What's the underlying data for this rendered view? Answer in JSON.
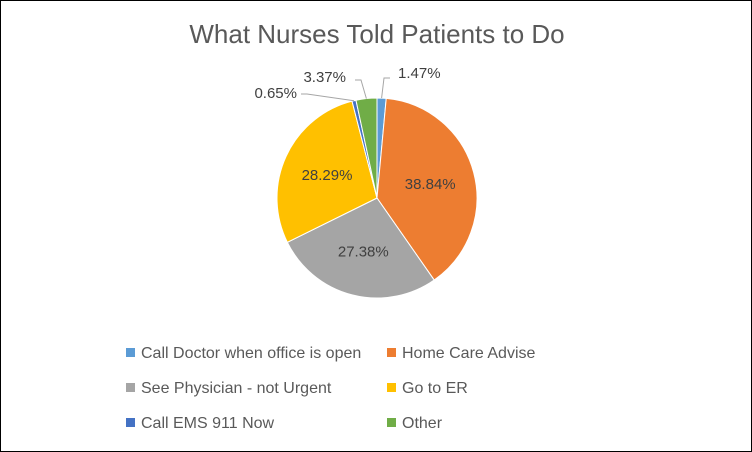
{
  "chart_data": {
    "type": "pie",
    "title": "What Nurses Told Patients to Do",
    "categories": [
      "Call Doctor when office is open",
      "Home Care Advise",
      "See Physician - not Urgent",
      "Go to ER",
      "Call EMS 911 Now",
      "Other"
    ],
    "values": [
      1.47,
      38.84,
      27.38,
      28.29,
      0.65,
      3.37
    ],
    "data_labels": [
      "1.47%",
      "38.84%",
      "27.38%",
      "28.29%",
      "0.65%",
      "3.37%"
    ],
    "colors": [
      "#5B9BD5",
      "#ED7D31",
      "#A5A5A5",
      "#FFC000",
      "#4472C4",
      "#70AD47"
    ],
    "legend_position": "bottom",
    "start_angle_deg": 0,
    "direction": "clockwise"
  }
}
